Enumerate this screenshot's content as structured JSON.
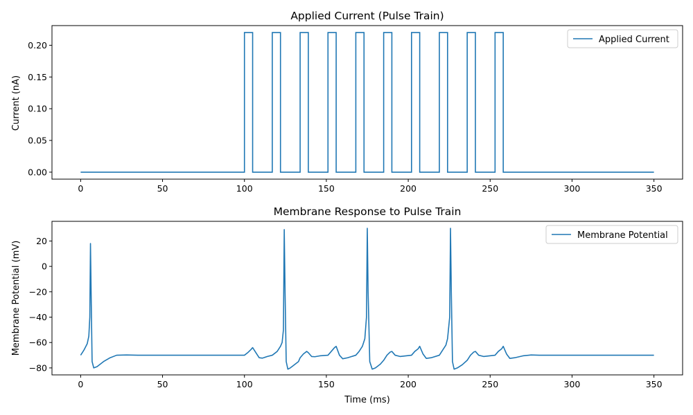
{
  "chart_data": [
    {
      "type": "line",
      "title": "Applied Current (Pulse Train)",
      "xlabel": "",
      "ylabel": "Current (nA)",
      "xlim": [
        -17.5,
        367.5
      ],
      "ylim": [
        -0.011,
        0.231
      ],
      "xticks": [
        0,
        50,
        100,
        150,
        200,
        250,
        300,
        350
      ],
      "yticks": [
        0.0,
        0.05,
        0.1,
        0.15,
        0.2
      ],
      "ytick_labels": [
        "0.00",
        "0.05",
        "0.10",
        "0.15",
        "0.20"
      ],
      "legend": "top-right",
      "grid": false,
      "color": "#1f77b4",
      "series": [
        {
          "name": "Applied Current",
          "x": [
            0,
            100,
            100,
            105,
            105,
            117,
            117,
            122,
            122,
            134,
            134,
            139,
            139,
            151,
            151,
            156,
            156,
            168,
            168,
            173,
            173,
            185,
            185,
            190,
            190,
            202,
            202,
            207,
            207,
            219,
            219,
            224,
            224,
            236,
            236,
            241,
            241,
            253,
            253,
            258,
            258,
            350
          ],
          "y": [
            0,
            0,
            0.22,
            0.22,
            0,
            0,
            0.22,
            0.22,
            0,
            0,
            0.22,
            0.22,
            0,
            0,
            0.22,
            0.22,
            0,
            0,
            0.22,
            0.22,
            0,
            0,
            0.22,
            0.22,
            0,
            0,
            0.22,
            0.22,
            0,
            0,
            0.22,
            0.22,
            0,
            0,
            0.22,
            0.22,
            0,
            0,
            0.22,
            0.22,
            0,
            0
          ]
        }
      ]
    },
    {
      "type": "line",
      "title": "Membrane Response to Pulse Train",
      "xlabel": "Time (ms)",
      "ylabel": "Membrane Potential (mV)",
      "xlim": [
        -17.5,
        367.5
      ],
      "ylim": [
        -85.5,
        35.5
      ],
      "xticks": [
        0,
        50,
        100,
        150,
        200,
        250,
        300,
        350
      ],
      "yticks": [
        -80,
        -60,
        -40,
        -20,
        0,
        20
      ],
      "ytick_labels": [
        "−80",
        "−60",
        "−40",
        "−20",
        "0",
        "20"
      ],
      "legend": "top-right",
      "grid": false,
      "color": "#1f77b4",
      "series": [
        {
          "name": "Membrane Potential",
          "x": [
            0,
            2,
            4,
            5,
            5.6,
            6,
            6.5,
            7,
            8,
            10,
            14,
            18,
            22,
            28,
            35,
            60,
            100,
            102,
            104,
            105,
            107,
            109,
            111,
            114,
            117,
            120,
            122,
            123,
            123.8,
            124.3,
            124.8,
            125.5,
            126.5,
            128,
            130,
            133,
            134,
            136,
            138,
            139,
            141,
            143,
            146,
            151,
            153,
            155,
            156,
            158,
            160,
            163,
            168,
            170,
            172,
            173.5,
            174.5,
            175,
            175.5,
            176.5,
            178,
            180,
            183,
            185,
            187,
            189,
            190,
            192,
            195,
            202,
            204,
            206,
            207,
            209,
            211,
            214,
            219,
            221,
            223,
            224,
            225.3,
            225.8,
            226.3,
            227,
            228,
            230,
            233,
            236,
            238,
            240,
            241,
            243,
            246,
            253,
            255,
            257,
            258,
            260,
            262,
            265,
            270,
            275,
            280,
            300,
            350
          ],
          "y": [
            -70,
            -66,
            -61,
            -55,
            -40,
            18,
            -30,
            -75,
            -80,
            -79,
            -75,
            -72,
            -70,
            -69.8,
            -70,
            -70,
            -70,
            -68,
            -65.5,
            -64,
            -68,
            -72,
            -72.3,
            -71,
            -70,
            -67,
            -63,
            -60,
            -50,
            29,
            -20,
            -75,
            -81,
            -80,
            -78,
            -75,
            -72,
            -69,
            -67,
            -68,
            -71,
            -71.2,
            -70.5,
            -70,
            -67,
            -64,
            -63,
            -70,
            -72.8,
            -72,
            -70,
            -67,
            -63,
            -57,
            -40,
            30,
            -20,
            -75,
            -81,
            -80,
            -77,
            -74,
            -70,
            -67.5,
            -67,
            -70,
            -71,
            -70,
            -67,
            -65,
            -63,
            -69,
            -72.5,
            -72,
            -70,
            -66,
            -62,
            -57,
            -40,
            30,
            -20,
            -75,
            -81,
            -80,
            -77.5,
            -74,
            -70,
            -67.5,
            -67,
            -70,
            -71,
            -70,
            -67,
            -65,
            -63,
            -69,
            -72.5,
            -72,
            -70.5,
            -69.8,
            -70,
            -70,
            -70
          ]
        }
      ]
    }
  ]
}
